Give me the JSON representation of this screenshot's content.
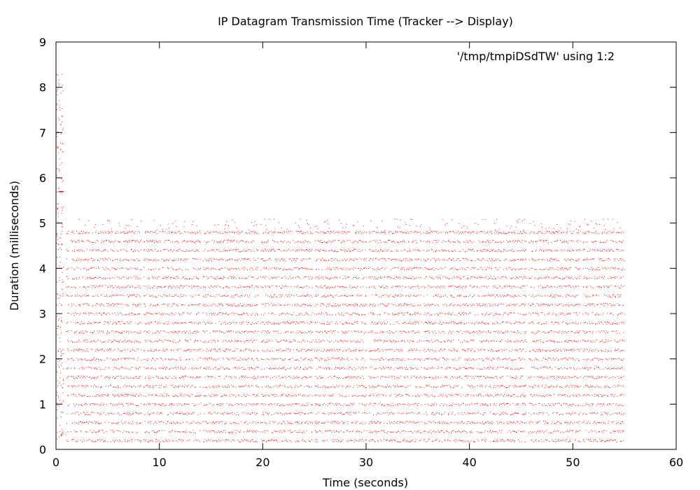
{
  "chart_data": {
    "type": "scatter",
    "title": "IP Datagram Transmission Time (Tracker --> Display)",
    "xlabel": "Time (seconds)",
    "ylabel": "Duration (milliseconds)",
    "xlim": [
      0,
      60
    ],
    "ylim": [
      0,
      9
    ],
    "xticks": [
      0,
      10,
      20,
      30,
      40,
      50,
      60
    ],
    "yticks": [
      0,
      1,
      2,
      3,
      4,
      5,
      6,
      7,
      8,
      9
    ],
    "grid": false,
    "legend_position": "top-right",
    "series": [
      {
        "name": "'/tmp/tmpiDSdTW' using 1:2",
        "color": "#ff0000",
        "marker": "dot",
        "summary": {
          "x_range": [
            0,
            55
          ],
          "burst_region": {
            "x_range": [
              0,
              0.7
            ],
            "y_range": [
              0.2,
              8.3
            ],
            "dense_cluster_y": [
              5.4,
              6.0
            ]
          },
          "band_y_levels": [
            0.2,
            0.4,
            0.6,
            0.8,
            1.0,
            1.2,
            1.4,
            1.6,
            1.8,
            2.0,
            2.2,
            2.4,
            2.6,
            2.8,
            3.0,
            3.2,
            3.4,
            3.6,
            3.8,
            4.0,
            4.2,
            4.4,
            4.6,
            4.8
          ],
          "outliers_max_y": 5.1,
          "gap_x": [
            1.3,
            8.3,
            14.1,
            19.7,
            24.9,
            30.1,
            35.4,
            40.6,
            45.6,
            50.8
          ]
        }
      }
    ]
  }
}
